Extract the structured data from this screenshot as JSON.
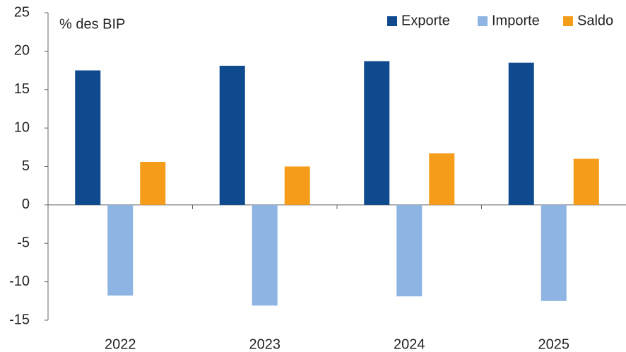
{
  "chart_data": {
    "type": "bar",
    "ylabel": "% des BIP",
    "categories": [
      "2022",
      "2023",
      "2024",
      "2025"
    ],
    "series": [
      {
        "name": "Exporte",
        "color": "#0f4a8f",
        "values": [
          17.5,
          18.1,
          18.7,
          18.5
        ]
      },
      {
        "name": "Importe",
        "color": "#8db4e2",
        "values": [
          -11.8,
          -13.1,
          -11.9,
          -12.5
        ]
      },
      {
        "name": "Saldo",
        "color": "#f59c1a",
        "values": [
          5.6,
          5.0,
          6.7,
          6.0
        ]
      }
    ],
    "ylim": [
      -15,
      25
    ],
    "yticks": [
      -15,
      -10,
      -5,
      0,
      5,
      10,
      15,
      20,
      25
    ],
    "grid": false,
    "legend": "upper right"
  }
}
